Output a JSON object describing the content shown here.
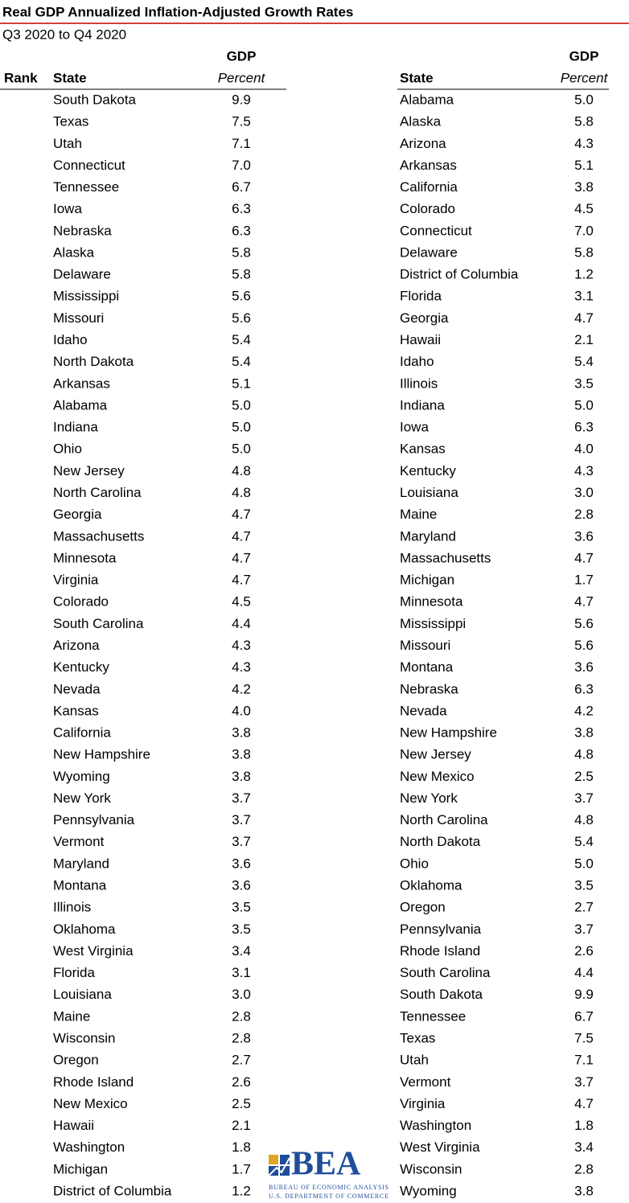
{
  "header": {
    "title": "Real GDP Annualized Inflation-Adjusted Growth Rates",
    "subtitle": "Q3 2020 to Q4 2020"
  },
  "left_table": {
    "header": {
      "rank": "Rank",
      "state": "State",
      "gdp": "GDP",
      "unit": "Percent"
    },
    "rows": [
      [
        "South Dakota",
        "9.9"
      ],
      [
        "Texas",
        "7.5"
      ],
      [
        "Utah",
        "7.1"
      ],
      [
        "Connecticut",
        "7.0"
      ],
      [
        "Tennessee",
        "6.7"
      ],
      [
        "Iowa",
        "6.3"
      ],
      [
        "Nebraska",
        "6.3"
      ],
      [
        "Alaska",
        "5.8"
      ],
      [
        "Delaware",
        "5.8"
      ],
      [
        "Mississippi",
        "5.6"
      ],
      [
        "Missouri",
        "5.6"
      ],
      [
        "Idaho",
        "5.4"
      ],
      [
        "North Dakota",
        "5.4"
      ],
      [
        "Arkansas",
        "5.1"
      ],
      [
        "Alabama",
        "5.0"
      ],
      [
        "Indiana",
        "5.0"
      ],
      [
        "Ohio",
        "5.0"
      ],
      [
        "New Jersey",
        "4.8"
      ],
      [
        "North Carolina",
        "4.8"
      ],
      [
        "Georgia",
        "4.7"
      ],
      [
        "Massachusetts",
        "4.7"
      ],
      [
        "Minnesota",
        "4.7"
      ],
      [
        "Virginia",
        "4.7"
      ],
      [
        "Colorado",
        "4.5"
      ],
      [
        "South Carolina",
        "4.4"
      ],
      [
        "Arizona",
        "4.3"
      ],
      [
        "Kentucky",
        "4.3"
      ],
      [
        "Nevada",
        "4.2"
      ],
      [
        "Kansas",
        "4.0"
      ],
      [
        "California",
        "3.8"
      ],
      [
        "New Hampshire",
        "3.8"
      ],
      [
        "Wyoming",
        "3.8"
      ],
      [
        "New York",
        "3.7"
      ],
      [
        "Pennsylvania",
        "3.7"
      ],
      [
        "Vermont",
        "3.7"
      ],
      [
        "Maryland",
        "3.6"
      ],
      [
        "Montana",
        "3.6"
      ],
      [
        "Illinois",
        "3.5"
      ],
      [
        "Oklahoma",
        "3.5"
      ],
      [
        "West Virginia",
        "3.4"
      ],
      [
        "Florida",
        "3.1"
      ],
      [
        "Louisiana",
        "3.0"
      ],
      [
        "Maine",
        "2.8"
      ],
      [
        "Wisconsin",
        "2.8"
      ],
      [
        "Oregon",
        "2.7"
      ],
      [
        "Rhode Island",
        "2.6"
      ],
      [
        "New Mexico",
        "2.5"
      ],
      [
        "Hawaii",
        "2.1"
      ],
      [
        "Washington",
        "1.8"
      ],
      [
        "Michigan",
        "1.7"
      ],
      [
        "District of Columbia",
        "1.2"
      ]
    ]
  },
  "right_table": {
    "header": {
      "state": "State",
      "gdp": "GDP",
      "unit": "Percent"
    },
    "rows": [
      [
        "Alabama",
        "5.0"
      ],
      [
        "Alaska",
        "5.8"
      ],
      [
        "Arizona",
        "4.3"
      ],
      [
        "Arkansas",
        "5.1"
      ],
      [
        "California",
        "3.8"
      ],
      [
        "Colorado",
        "4.5"
      ],
      [
        "Connecticut",
        "7.0"
      ],
      [
        "Delaware",
        "5.8"
      ],
      [
        "District of Columbia",
        "1.2"
      ],
      [
        "Florida",
        "3.1"
      ],
      [
        "Georgia",
        "4.7"
      ],
      [
        "Hawaii",
        "2.1"
      ],
      [
        "Idaho",
        "5.4"
      ],
      [
        "Illinois",
        "3.5"
      ],
      [
        "Indiana",
        "5.0"
      ],
      [
        "Iowa",
        "6.3"
      ],
      [
        "Kansas",
        "4.0"
      ],
      [
        "Kentucky",
        "4.3"
      ],
      [
        "Louisiana",
        "3.0"
      ],
      [
        "Maine",
        "2.8"
      ],
      [
        "Maryland",
        "3.6"
      ],
      [
        "Massachusetts",
        "4.7"
      ],
      [
        "Michigan",
        "1.7"
      ],
      [
        "Minnesota",
        "4.7"
      ],
      [
        "Mississippi",
        "5.6"
      ],
      [
        "Missouri",
        "5.6"
      ],
      [
        "Montana",
        "3.6"
      ],
      [
        "Nebraska",
        "6.3"
      ],
      [
        "Nevada",
        "4.2"
      ],
      [
        "New Hampshire",
        "3.8"
      ],
      [
        "New Jersey",
        "4.8"
      ],
      [
        "New Mexico",
        "2.5"
      ],
      [
        "New York",
        "3.7"
      ],
      [
        "North Carolina",
        "4.8"
      ],
      [
        "North Dakota",
        "5.4"
      ],
      [
        "Ohio",
        "5.0"
      ],
      [
        "Oklahoma",
        "3.5"
      ],
      [
        "Oregon",
        "2.7"
      ],
      [
        "Pennsylvania",
        "3.7"
      ],
      [
        "Rhode Island",
        "2.6"
      ],
      [
        "South Carolina",
        "4.4"
      ],
      [
        "South Dakota",
        "9.9"
      ],
      [
        "Tennessee",
        "6.7"
      ],
      [
        "Texas",
        "7.5"
      ],
      [
        "Utah",
        "7.1"
      ],
      [
        "Vermont",
        "3.7"
      ],
      [
        "Virginia",
        "4.7"
      ],
      [
        "Washington",
        "1.8"
      ],
      [
        "West Virginia",
        "3.4"
      ],
      [
        "Wisconsin",
        "2.8"
      ],
      [
        "Wyoming",
        "3.8"
      ]
    ]
  },
  "logo": {
    "name": "BEA",
    "line1": "BUREAU OF ECONOMIC ANALYSIS",
    "line2": "U.S. DEPARTMENT OF COMMERCE"
  }
}
